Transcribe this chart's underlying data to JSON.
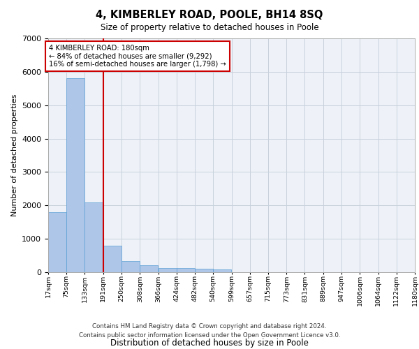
{
  "title": "4, KIMBERLEY ROAD, POOLE, BH14 8SQ",
  "subtitle": "Size of property relative to detached houses in Poole",
  "xlabel": "Distribution of detached houses by size in Poole",
  "ylabel": "Number of detached properties",
  "footer_line1": "Contains HM Land Registry data © Crown copyright and database right 2024.",
  "footer_line2": "Contains public sector information licensed under the Open Government Licence v3.0.",
  "annotation_line1": "4 KIMBERLEY ROAD: 180sqm",
  "annotation_line2": "← 84% of detached houses are smaller (9,292)",
  "annotation_line3": "16% of semi-detached houses are larger (1,798) →",
  "property_size": 180,
  "red_line_x": 191,
  "bar_edges": [
    17,
    75,
    133,
    191,
    250,
    308,
    366,
    424,
    482,
    540,
    599,
    657,
    715,
    773,
    831,
    889,
    947,
    1006,
    1064,
    1122,
    1180
  ],
  "bar_heights": [
    1790,
    5800,
    2080,
    800,
    340,
    200,
    130,
    115,
    100,
    90,
    0,
    0,
    0,
    0,
    0,
    0,
    0,
    0,
    0,
    0
  ],
  "bar_color": "#aec6e8",
  "bar_edgecolor": "#5a9fd4",
  "red_line_color": "#cc0000",
  "grid_color": "#c8d0dc",
  "bg_color": "#eef2f8",
  "ylim": [
    0,
    7000
  ],
  "yticks": [
    0,
    1000,
    2000,
    3000,
    4000,
    5000,
    6000,
    7000
  ]
}
